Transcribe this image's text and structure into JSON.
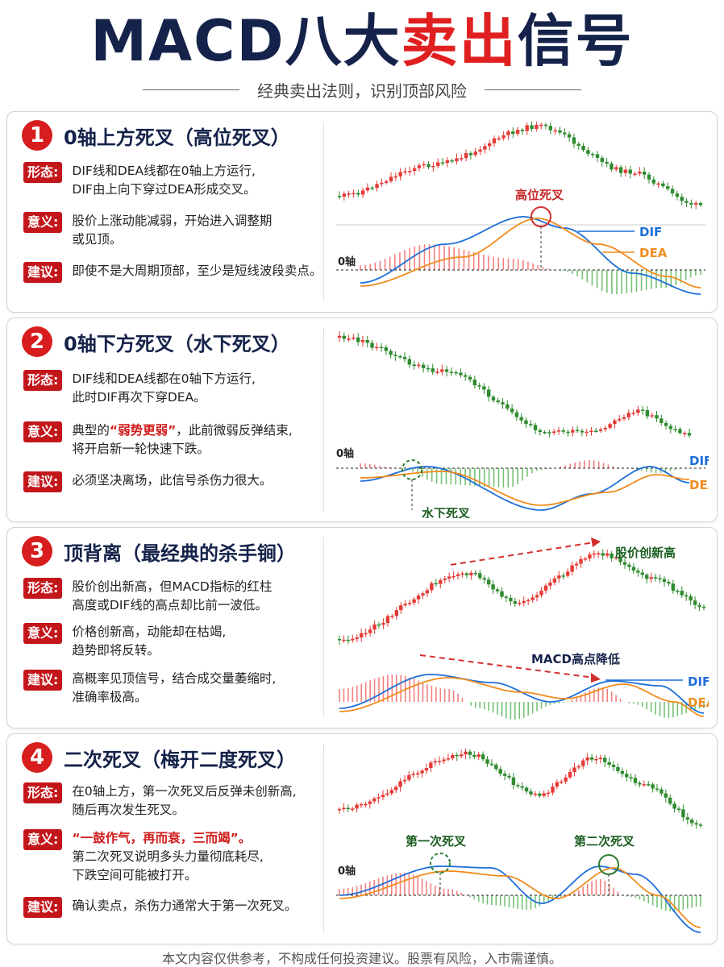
{
  "header": {
    "title_a": "MACD八大",
    "title_b": "卖出",
    "title_c": "信号",
    "subtitle": "经典卖出法则，识别顶部风险"
  },
  "colors": {
    "red": "#e02020",
    "navy": "#15234a",
    "tag_red": "#c3161b",
    "up_candle": "#e53935",
    "down_candle": "#2e8b2e",
    "dif": "#1e6fd9",
    "dea": "#f08c1e",
    "hist_up": "#f26b6b",
    "hist_down": "#5cb85c"
  },
  "cards": [
    {
      "num": "1",
      "title": "0轴上方死叉（高位死叉）",
      "tags": [
        "形态:",
        "意义:",
        "建议:"
      ],
      "form": "DIF线和DEA线都在0轴上方运行,\nDIF由上向下穿过DEA形成交叉。",
      "meaning": "股价上涨动能减弱，开始进入调整期\n或见顶。",
      "advice": "即使不是大周期顶部，至少是短线波段卖点。",
      "chart_labels": {
        "zero": "0轴",
        "dif": "DIF",
        "dea": "DEA",
        "callout": "高位死叉"
      }
    },
    {
      "num": "2",
      "title": "0轴下方死叉（水下死叉）",
      "tags": [
        "形态:",
        "意义:",
        "建议:"
      ],
      "form": "DIF线和DEA线都在0轴下方运行,\n此时DIF再次下穿DEA。",
      "meaning_pre": "典型的",
      "meaning_hl": "“弱势更弱”",
      "meaning_post": "，此前微弱反弹结束,\n将开启新一轮快速下跌。",
      "advice": "必须坚决离场，此信号杀伤力很大。",
      "chart_labels": {
        "zero": "0轴",
        "dif": "DIF",
        "dea": "DEA",
        "callout": "水下死叉"
      }
    },
    {
      "num": "3",
      "title": "顶背离（最经典的杀手锏）",
      "tags": [
        "形态:",
        "意义:",
        "建议:"
      ],
      "form": "股价创出新高，但MACD指标的红柱\n高度或DIF线的高点却比前一波低。",
      "meaning": "价格创新高，动能却在枯竭,\n趋势即将反转。",
      "advice": "高概率见顶信号，结合成交量萎缩时,\n准确率极高。",
      "chart_labels": {
        "dif": "DIF",
        "dea": "DEA",
        "callout_top": "股价创新高",
        "callout_macd": "MACD高点降低"
      }
    },
    {
      "num": "4",
      "title": "二次死叉（梅开二度死叉）",
      "tags": [
        "形态:",
        "意义:",
        "建议:"
      ],
      "form": "在0轴上方，第一次死叉后反弹未创新高,\n随后再次发生死叉。",
      "meaning_hl": "“一鼓作气，再而衰，三而竭”。",
      "meaning_post": "第二次死叉说明多头力量彻底耗尽,\n下跌空间可能被打开。",
      "advice": "确认卖点，杀伤力通常大于第一次死叉。",
      "chart_labels": {
        "zero": "0轴",
        "callout_first": "第一次死叉",
        "callout_second": "第二次死叉"
      }
    }
  ],
  "footer": "本文内容仅供参考，不构成任何投资建议。股票有风险，入市需谨慎。"
}
